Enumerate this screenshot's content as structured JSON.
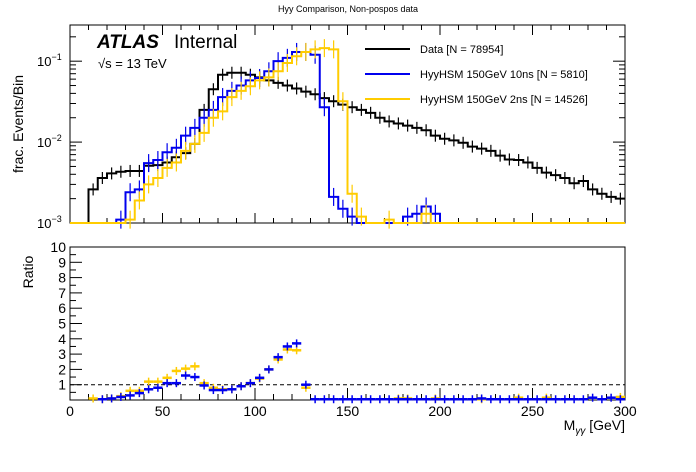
{
  "chart_data": [
    {
      "type": "line",
      "subtype": "step-histogram",
      "title": "Hyy Comparison, Non-pospos data",
      "ylabel": "frac. Events/Bin",
      "xlabel": "",
      "yscale": "log",
      "ylim": [
        0.001,
        0.28
      ],
      "xlim": [
        0,
        300
      ],
      "bin_width": 5,
      "ytick_labels": [
        {
          "value": 0.1,
          "base": "10",
          "exp": "−1"
        },
        {
          "value": 0.01,
          "base": "10",
          "exp": "−2"
        },
        {
          "value": 0.001,
          "base": "10",
          "exp": "−3"
        }
      ],
      "annotations": {
        "atlas_label": "ATLAS",
        "atlas_status": "Internal",
        "energy": "√s = 13 TeV"
      },
      "legend": {
        "placement": "top-right",
        "entries": [
          {
            "label": "Data [N = 78954]",
            "color": "#000000"
          },
          {
            "label": "HyyHSM 150GeV 10ns [N = 5810]",
            "color": "#0000ee"
          },
          {
            "label": "HyyHSM 150GeV 2ns [N = 14526]",
            "color": "#ffcc00"
          }
        ]
      },
      "x_bin_low_edges": [
        0,
        5,
        10,
        15,
        20,
        25,
        30,
        35,
        40,
        45,
        50,
        55,
        60,
        65,
        70,
        75,
        80,
        85,
        90,
        95,
        100,
        105,
        110,
        115,
        120,
        125,
        130,
        135,
        140,
        145,
        150,
        155,
        160,
        165,
        170,
        175,
        180,
        185,
        190,
        195,
        200,
        205,
        210,
        215,
        220,
        225,
        230,
        235,
        240,
        245,
        250,
        255,
        260,
        265,
        270,
        275,
        280,
        285,
        290,
        295
      ],
      "series": [
        {
          "name": "Data [N = 78954]",
          "color": "#000000",
          "values": [
            0,
            0,
            0.0026,
            0.0036,
            0.0041,
            0.0043,
            0.0044,
            0.0044,
            0.0051,
            0.0052,
            0.0056,
            0.0065,
            0.0073,
            0.0095,
            0.025,
            0.045,
            0.068,
            0.072,
            0.072,
            0.068,
            0.063,
            0.058,
            0.054,
            0.05,
            0.046,
            0.042,
            0.039,
            0.035,
            0.032,
            0.029,
            0.027,
            0.025,
            0.023,
            0.02,
            0.018,
            0.017,
            0.016,
            0.015,
            0.014,
            0.012,
            0.011,
            0.0105,
            0.0098,
            0.0088,
            0.0083,
            0.0078,
            0.0068,
            0.0061,
            0.006,
            0.0056,
            0.0048,
            0.0042,
            0.0039,
            0.0036,
            0.0031,
            0.0033,
            0.0026,
            0.0023,
            0.0021,
            0.002
          ]
        },
        {
          "name": "HyyHSM 150GeV 10ns [N = 5810]",
          "color": "#0000ee",
          "values": [
            0,
            0,
            0,
            0,
            0,
            0.0011,
            0.0024,
            0.0026,
            0.0055,
            0.006,
            0.0075,
            0.0085,
            0.012,
            0.015,
            0.02,
            0.025,
            0.036,
            0.043,
            0.05,
            0.058,
            0.062,
            0.075,
            0.1,
            0.11,
            0.13,
            0.13,
            0.12,
            0.027,
            0.0021,
            0.0015,
            0.0012,
            0,
            0,
            0,
            0,
            0,
            0.0012,
            0.0013,
            0.0016,
            0.0013,
            0,
            0,
            0,
            0,
            0,
            0,
            0,
            0,
            0,
            0,
            0,
            0,
            0,
            0,
            0,
            0,
            0,
            0,
            0,
            0
          ]
        },
        {
          "name": "HyyHSM 150GeV 2ns [N = 14526]",
          "color": "#ffcc00",
          "values": [
            0,
            0,
            0,
            0,
            0,
            0,
            0.0011,
            0.0019,
            0.003,
            0.0036,
            0.0048,
            0.0056,
            0.0078,
            0.0095,
            0.013,
            0.02,
            0.024,
            0.036,
            0.043,
            0.049,
            0.058,
            0.063,
            0.075,
            0.095,
            0.115,
            0.13,
            0.14,
            0.145,
            0.14,
            0.032,
            0.0023,
            0.0012,
            0,
            0,
            0.0011,
            0,
            0,
            0,
            0.0013,
            0,
            0,
            0,
            0,
            0,
            0,
            0,
            0,
            0,
            0,
            0,
            0,
            0,
            0,
            0,
            0,
            0,
            0,
            0,
            0,
            0
          ]
        }
      ]
    },
    {
      "type": "scatter",
      "subtype": "ratio-with-xerrors",
      "ylabel": "Ratio",
      "xlabel": "Mγγ [GeV]",
      "xlabel_main": "M",
      "xlabel_sub": "γγ",
      "xlabel_unit": " [GeV]",
      "ylim": [
        0,
        10
      ],
      "xlim": [
        0,
        300
      ],
      "yticks": [
        1,
        2,
        3,
        4,
        5,
        6,
        7,
        8,
        9,
        10
      ],
      "xticks": [
        0,
        50,
        100,
        150,
        200,
        250,
        300
      ],
      "reference_line": 1,
      "series": [
        {
          "name": "HyyHSM 150GeV 10ns / Data",
          "color": "#0000ee",
          "x": [
            17.5,
            22.5,
            27.5,
            32.5,
            37.5,
            42.5,
            47.5,
            52.5,
            57.5,
            62.5,
            67.5,
            72.5,
            77.5,
            82.5,
            87.5,
            92.5,
            97.5,
            102.5,
            107.5,
            112.5,
            117.5,
            122.5,
            127.5,
            132.5,
            137.5,
            142.5,
            147.5,
            152.5,
            157.5,
            162.5,
            167.5,
            172.5,
            177.5,
            182.5,
            187.5,
            192.5,
            197.5,
            202.5,
            207.5,
            212.5,
            217.5,
            222.5,
            227.5,
            232.5,
            237.5,
            242.5,
            247.5,
            252.5,
            257.5,
            262.5,
            267.5,
            272.5,
            277.5,
            282.5,
            287.5,
            292.5,
            297.5
          ],
          "y": [
            0.05,
            0.1,
            0.2,
            0.3,
            0.45,
            0.7,
            0.8,
            1.1,
            1.1,
            1.6,
            1.5,
            0.95,
            0.65,
            0.65,
            0.7,
            0.9,
            1.1,
            1.45,
            2.0,
            2.8,
            3.5,
            3.7,
            1.0,
            0.05,
            0.05,
            0.05,
            0.05,
            0.05,
            0.05,
            0.05,
            0.05,
            0.05,
            0.05,
            0.05,
            0.05,
            0.05,
            0.05,
            0.05,
            0.05,
            0.05,
            0.05,
            0.1,
            0.05,
            0.05,
            0.05,
            0.05,
            0.05,
            0.05,
            0.05,
            0.05,
            0.05,
            0.05,
            0.05,
            0.15,
            0.05,
            0.15,
            0.05
          ]
        },
        {
          "name": "HyyHSM 150GeV 2ns / Data",
          "color": "#ffcc00",
          "x": [
            12.5,
            17.5,
            22.5,
            27.5,
            32.5,
            37.5,
            42.5,
            47.5,
            52.5,
            57.5,
            62.5,
            67.5,
            72.5,
            77.5,
            82.5,
            87.5,
            92.5,
            97.5,
            102.5,
            107.5,
            112.5,
            117.5,
            122.5,
            127.5,
            177.5,
            182.5,
            197.5,
            222.5,
            242.5,
            257.5,
            297.5
          ],
          "y": [
            0.1,
            0.05,
            0.1,
            0.25,
            0.6,
            0.6,
            1.2,
            1.2,
            1.45,
            1.9,
            2.05,
            2.2,
            1.1,
            0.8,
            0.7,
            0.7,
            0.9,
            1.1,
            1.4,
            2.0,
            2.65,
            3.3,
            3.25,
            0.8,
            0.1,
            0.1,
            0.1,
            0.05,
            0.15,
            0.15,
            0.2
          ]
        }
      ]
    }
  ]
}
